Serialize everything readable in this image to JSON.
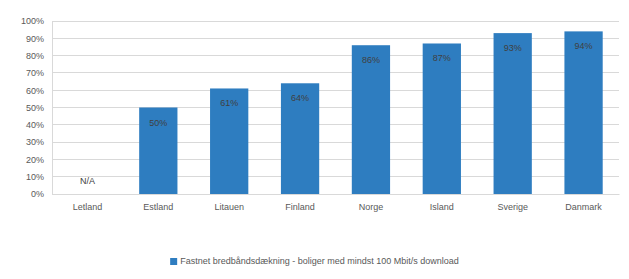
{
  "chart_data": {
    "type": "bar",
    "categories": [
      "Letland",
      "Estland",
      "Litauen",
      "Finland",
      "Norge",
      "Island",
      "Sverige",
      "Danmark"
    ],
    "series": [
      {
        "name": "Fastnet bredbåndsdækning - boliger med mindst 100 Mbit/s download",
        "color": "#2e7dc0",
        "values": [
          null,
          50,
          61,
          64,
          86,
          87,
          93,
          94
        ],
        "value_labels": [
          "N/A",
          "50%",
          "61%",
          "64%",
          "86%",
          "87%",
          "93%",
          "94%"
        ]
      }
    ],
    "ylim": [
      0,
      100
    ],
    "yticks": [
      {
        "value": 0,
        "label": "0%"
      },
      {
        "value": 10,
        "label": "10%"
      },
      {
        "value": 20,
        "label": "20%"
      },
      {
        "value": 30,
        "label": "30%"
      },
      {
        "value": 40,
        "label": "40%"
      },
      {
        "value": 50,
        "label": "50%"
      },
      {
        "value": 60,
        "label": "60%"
      },
      {
        "value": 70,
        "label": "70%"
      },
      {
        "value": 80,
        "label": "80%"
      },
      {
        "value": 90,
        "label": "90%"
      },
      {
        "value": 100,
        "label": "100%"
      }
    ],
    "grid": true,
    "legend": "bottom",
    "data_labels": true
  }
}
